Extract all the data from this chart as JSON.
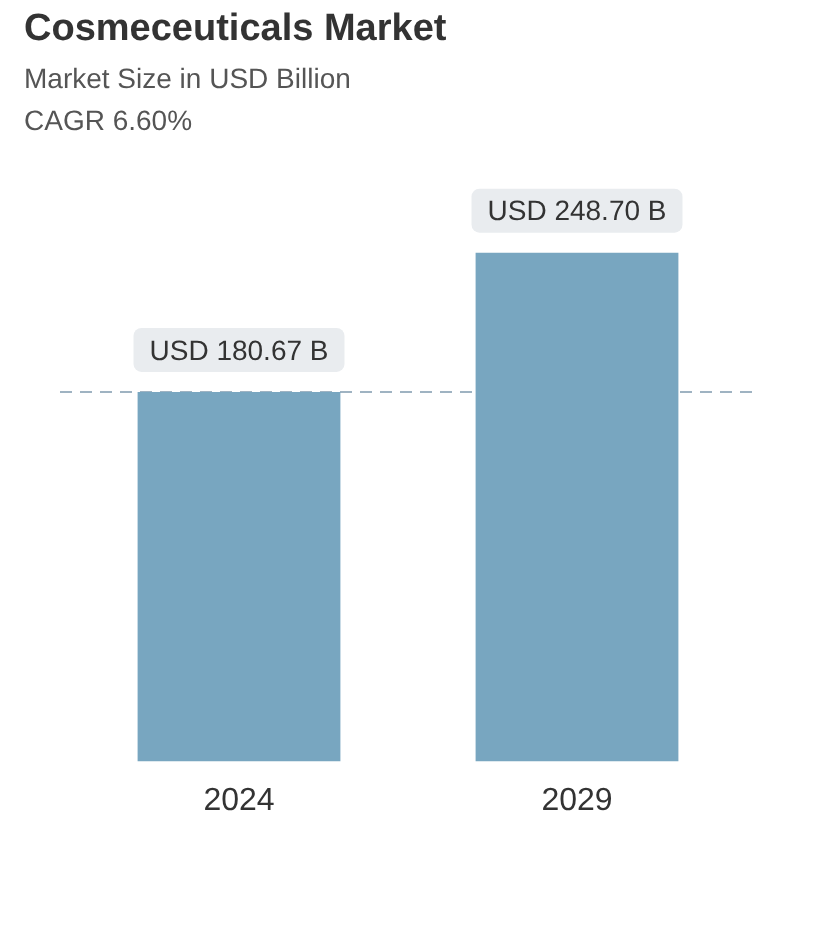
{
  "chart_data": {
    "type": "bar",
    "title": "Cosmeceuticals Market",
    "subtitle": "Market Size in USD Billion",
    "annotations": [
      "CAGR 6.60%"
    ],
    "categories": [
      "2024",
      "2029"
    ],
    "values": [
      180.67,
      248.7
    ],
    "value_labels": [
      "USD 180.67 B",
      "USD 248.70 B"
    ],
    "color": "#78a6c0",
    "tick_labels": "x",
    "grid": false,
    "legend": false,
    "ref_lines": [
      {
        "axis": "y",
        "value": 180.67,
        "color": "#9fb3c2",
        "line_style": "dashed"
      }
    ]
  }
}
